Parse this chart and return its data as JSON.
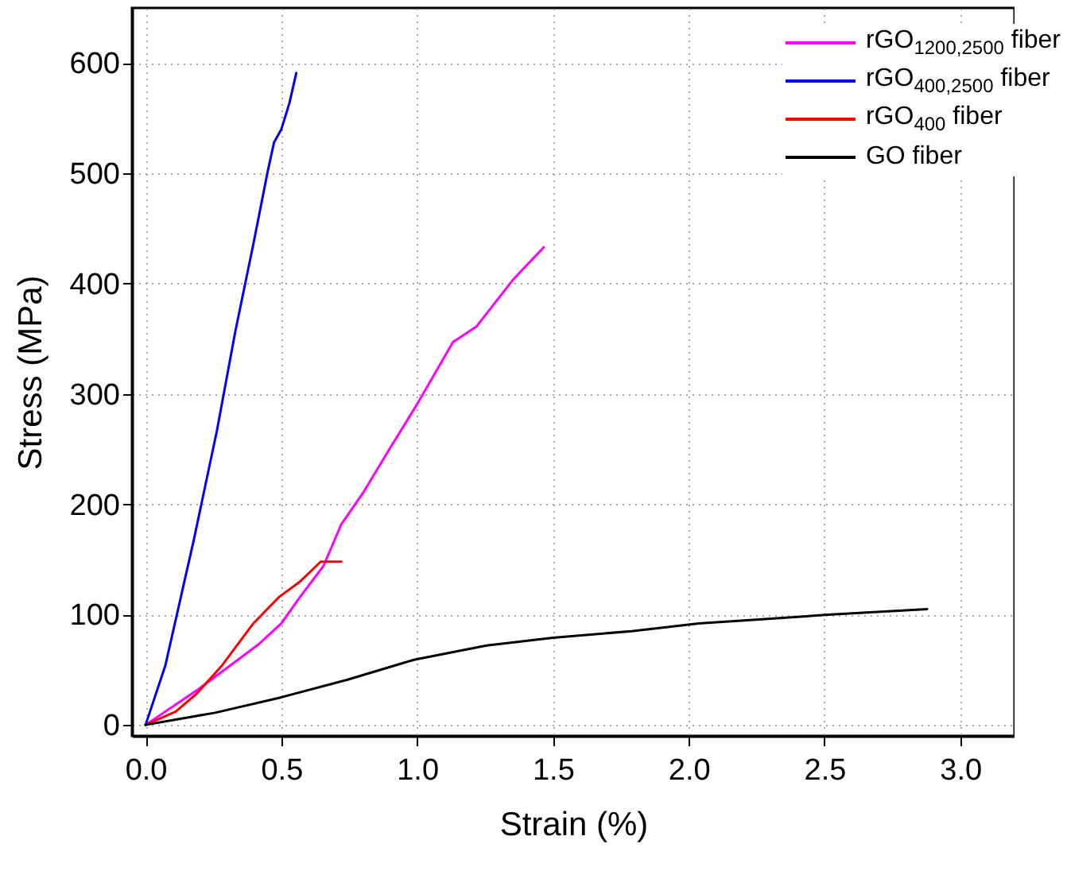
{
  "chart_data": {
    "type": "line",
    "xlabel": "Strain (%)",
    "ylabel": "Stress (MPa)",
    "xlim": [
      -0.05,
      3.2
    ],
    "ylim": [
      -10,
      650
    ],
    "xticks": [
      {
        "value": 0,
        "label": "0.0"
      },
      0.5,
      {
        "value": 1,
        "label": "1.0"
      },
      1.5,
      {
        "value": 2,
        "label": "2.0"
      },
      2.5,
      {
        "value": 3,
        "label": "3.0"
      }
    ],
    "yticks": [
      0,
      100,
      200,
      300,
      400,
      500,
      600
    ],
    "grid": true,
    "legend": "top right",
    "line_style": "solid",
    "marker": "none",
    "series": [
      {
        "name": "rGO$_{1200,2500}$ fiber",
        "color": "#ff00ff",
        "x": [
          0,
          0.187,
          0.34,
          0.416,
          0.5,
          0.569,
          0.655,
          0.721,
          0.8,
          0.893,
          0.998,
          1.132,
          1.218,
          1.351,
          1.466
        ],
        "values": [
          0,
          31,
          59,
          73,
          92,
          116,
          144,
          182,
          210,
          248,
          290,
          347,
          361,
          403,
          433
        ]
      },
      {
        "name": "rGO$_{400,2500}$ fiber",
        "color": "#0000ff",
        "x": [
          0,
          0.073,
          0.177,
          0.263,
          0.33,
          0.397,
          0.45,
          0.473,
          0.5,
          0.53,
          0.555
        ],
        "values": [
          0,
          54,
          167,
          267,
          356,
          436,
          502,
          528,
          540,
          564,
          591
        ]
      },
      {
        "name": "rGO$_{400}$ fiber",
        "color": "#ff0000",
        "x": [
          0,
          0.111,
          0.187,
          0.282,
          0.397,
          0.492,
          0.569,
          0.607,
          0.645,
          0.721
        ],
        "values": [
          0,
          12,
          28,
          54,
          92,
          116,
          130,
          139,
          148,
          148
        ]
      },
      {
        "name": "GO fiber",
        "color": "#000000",
        "x": [
          0,
          0.256,
          0.5,
          0.744,
          0.988,
          1.256,
          1.5,
          1.79,
          2.037,
          2.28,
          2.524,
          2.878
        ],
        "values": [
          0,
          11,
          25,
          41,
          59,
          72,
          79,
          85,
          92,
          96,
          100,
          105
        ]
      }
    ]
  }
}
